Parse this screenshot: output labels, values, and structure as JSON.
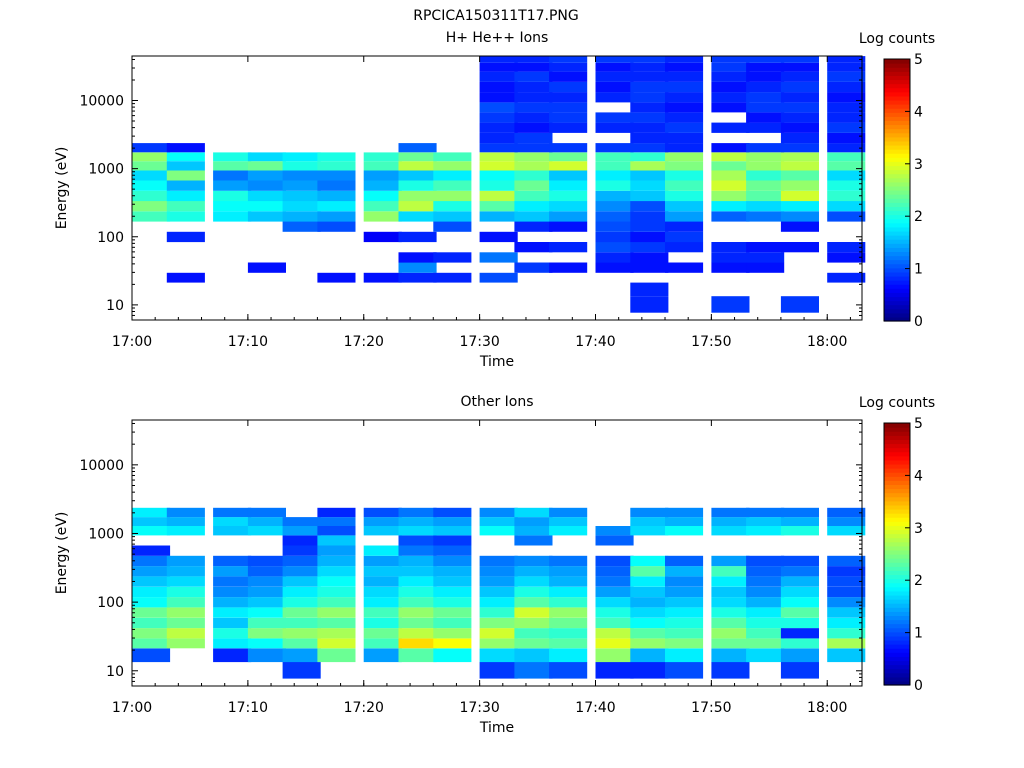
{
  "figure_title": "RPCICA150311T17.PNG",
  "colorbar": {
    "label": "Log counts",
    "ticks": [
      "0",
      "1",
      "2",
      "3",
      "4",
      "5"
    ],
    "range": [
      0,
      5
    ],
    "colormap": "jet"
  },
  "chart_data": [
    {
      "type": "heatmap",
      "title": "H+ He++ Ions",
      "xlabel": "Time",
      "ylabel": "Energy (eV)",
      "xticks": [
        "17:00",
        "17:10",
        "17:20",
        "17:30",
        "17:40",
        "17:50",
        "18:00"
      ],
      "yticks": [
        "10",
        "100",
        "1000",
        "10000"
      ],
      "y_scale": "log",
      "ylim": [
        6,
        45000
      ],
      "xlim": [
        "17:00",
        "18:03"
      ],
      "time_bins_start": [
        "17:00",
        "17:03",
        "17:07",
        "17:10",
        "17:13",
        "17:16",
        "17:20",
        "17:23",
        "17:26",
        "17:30",
        "17:33",
        "17:36",
        "17:40",
        "17:43",
        "17:46",
        "17:50",
        "17:53",
        "17:56",
        "18:00"
      ],
      "time_bin_minutes": 3.25,
      "energy_bins_eV": [
        10,
        18,
        25,
        35,
        50,
        70,
        100,
        140,
        200,
        280,
        400,
        560,
        800,
        1100,
        1500,
        2000,
        2800,
        4000,
        5600,
        8000,
        11000,
        16000,
        22000,
        32000,
        40000
      ],
      "z": [
        [
          0,
          0,
          0,
          0,
          0,
          0,
          0,
          0,
          2.2,
          2.5,
          2.1,
          1.9,
          1.7,
          2.4,
          2.6,
          0.9,
          0,
          0,
          0,
          0,
          0,
          0,
          0,
          0,
          0
        ],
        [
          0,
          0,
          0.7,
          0,
          0,
          0,
          0.8,
          0,
          2.0,
          2.2,
          1.8,
          1.5,
          2.5,
          1.6,
          1.9,
          0.7,
          0,
          0,
          0,
          0,
          0,
          0,
          0,
          0,
          0
        ],
        [
          0,
          0,
          0,
          0,
          0,
          0,
          0,
          0,
          1.8,
          1.9,
          2.0,
          1.4,
          1.2,
          2.3,
          2.0,
          0,
          0,
          0,
          0,
          0,
          0,
          0,
          0,
          0,
          0
        ],
        [
          0,
          0,
          0,
          0.7,
          0,
          0,
          0,
          0,
          1.6,
          1.9,
          1.7,
          1.3,
          1.4,
          2.4,
          1.7,
          0,
          0,
          0,
          0,
          0,
          0,
          0,
          0,
          0,
          0
        ],
        [
          0,
          0,
          0,
          0,
          0,
          0,
          0,
          1.1,
          1.5,
          1.7,
          1.6,
          1.4,
          1.3,
          2.0,
          1.8,
          0,
          0,
          0,
          0,
          0,
          0,
          0,
          0,
          0,
          0
        ],
        [
          0,
          0,
          0.7,
          0,
          0,
          0,
          0,
          1.0,
          1.4,
          1.8,
          1.5,
          1.2,
          1.3,
          2.1,
          2.0,
          0,
          0,
          0,
          0,
          0,
          0,
          0,
          0,
          0,
          0
        ],
        [
          0,
          0,
          0.7,
          0,
          0,
          0,
          0.6,
          0,
          2.6,
          2.2,
          1.9,
          1.5,
          1.4,
          2.2,
          2.1,
          0,
          0,
          0,
          0,
          0,
          0,
          0,
          0,
          0,
          0
        ],
        [
          0,
          0,
          0.8,
          1.3,
          0.7,
          0,
          0.8,
          0,
          1.7,
          2.8,
          2.6,
          2.0,
          1.6,
          2.8,
          2.4,
          1.1,
          0,
          0,
          0,
          0,
          0,
          0,
          0,
          0,
          0
        ],
        [
          0,
          0,
          0.8,
          0,
          0.8,
          0,
          0,
          1.0,
          1.6,
          2.0,
          2.6,
          2.2,
          1.8,
          2.6,
          2.2,
          0,
          0,
          0,
          0,
          0,
          0,
          0,
          0,
          0,
          0
        ],
        [
          0,
          0,
          1.0,
          0,
          1.2,
          0,
          0.7,
          0,
          1.5,
          2.3,
          2.8,
          2.0,
          1.9,
          2.9,
          2.8,
          0.9,
          0.8,
          0.8,
          0.9,
          1.0,
          0.7,
          0.7,
          0.8,
          0.7,
          0.8
        ],
        [
          0,
          0,
          0,
          0.9,
          0,
          0.7,
          0,
          0.8,
          1.6,
          1.8,
          2.2,
          2.4,
          2.1,
          2.7,
          2.6,
          0.9,
          0.9,
          0.7,
          0.8,
          0.9,
          0.8,
          0.8,
          0.9,
          0.7,
          0.8
        ],
        [
          0,
          0,
          0,
          0.7,
          0,
          0.8,
          0,
          0.7,
          1.4,
          1.7,
          2.0,
          1.8,
          1.6,
          2.9,
          2.4,
          0.9,
          0,
          0.8,
          0.9,
          0.9,
          0.8,
          0.9,
          0.7,
          0.8,
          0.9
        ],
        [
          0,
          0,
          0,
          0.7,
          0.8,
          1.0,
          0.9,
          1.0,
          1.1,
          1.3,
          1.5,
          2.0,
          1.8,
          2.2,
          2.2,
          0.9,
          0,
          0.8,
          0.9,
          0,
          0.8,
          0.7,
          0.8,
          0.7,
          0.9
        ],
        [
          0.8,
          0.8,
          0,
          0.7,
          0.7,
          0.9,
          0.7,
          0.9,
          0.9,
          1.0,
          1.6,
          1.7,
          1.6,
          2.7,
          2.1,
          0.9,
          0.8,
          0.8,
          0.9,
          0.8,
          0.9,
          0.9,
          0.8,
          0.8,
          0.9
        ],
        [
          0,
          0,
          0,
          0.7,
          0,
          0.8,
          0.9,
          0.8,
          1.4,
          1.6,
          2.0,
          2.2,
          2.0,
          2.5,
          2.6,
          0.8,
          0.8,
          0.9,
          0.8,
          0.7,
          0.8,
          0.9,
          0.8,
          0.7,
          0.8
        ],
        [
          0.9,
          0,
          0,
          0.7,
          0.8,
          0.8,
          0,
          0,
          1.1,
          1.8,
          2.6,
          2.9,
          2.7,
          2.4,
          2.8,
          0.7,
          0,
          0.8,
          0,
          0.7,
          0.8,
          0.7,
          0.8,
          0.9,
          0.9
        ],
        [
          0,
          0,
          0,
          0.7,
          0.8,
          0.7,
          0,
          0,
          1.2,
          1.7,
          2.3,
          2.4,
          2.1,
          2.6,
          2.6,
          0.9,
          0,
          0.8,
          0.7,
          0.9,
          0.9,
          0.8,
          0.7,
          0.7,
          0.9
        ],
        [
          0.9,
          0,
          0,
          0,
          0,
          0.7,
          0,
          0.7,
          1.3,
          1.8,
          2.9,
          2.6,
          2.3,
          2.8,
          2.7,
          0.9,
          0.8,
          0.7,
          0.8,
          0.9,
          0.8,
          0.9,
          0.8,
          0.7,
          0.9
        ],
        [
          0,
          0,
          0.8,
          0,
          0.7,
          0.8,
          0,
          0,
          1.0,
          1.7,
          2.1,
          2.0,
          1.7,
          2.3,
          2.2,
          0.8,
          0.7,
          0.9,
          0.8,
          0.8,
          0.7,
          0.8,
          0.9,
          0.8,
          0.8
        ]
      ]
    },
    {
      "type": "heatmap",
      "title": "Other Ions",
      "xlabel": "Time",
      "ylabel": "Energy (eV)",
      "xticks": [
        "17:00",
        "17:10",
        "17:20",
        "17:30",
        "17:40",
        "17:50",
        "18:00"
      ],
      "yticks": [
        "10",
        "100",
        "1000",
        "10000"
      ],
      "y_scale": "log",
      "ylim": [
        6,
        45000
      ],
      "xlim": [
        "17:00",
        "18:03"
      ],
      "time_bins_start": [
        "17:00",
        "17:03",
        "17:07",
        "17:10",
        "17:13",
        "17:16",
        "17:20",
        "17:23",
        "17:26",
        "17:30",
        "17:33",
        "17:36",
        "17:40",
        "17:43",
        "17:46",
        "17:50",
        "17:53",
        "17:56",
        "18:00"
      ],
      "time_bin_minutes": 3.25,
      "energy_bins_eV": [
        10,
        18,
        25,
        35,
        50,
        70,
        100,
        140,
        200,
        280,
        400,
        560,
        800,
        1100,
        1500,
        2000,
        2800,
        4000,
        5600,
        8000,
        11000,
        16000,
        22000,
        32000,
        40000
      ],
      "z": [
        [
          0,
          1.0,
          2.3,
          2.5,
          2.2,
          2.4,
          1.9,
          1.8,
          1.6,
          1.4,
          1.2,
          0.8,
          0,
          1.9,
          1.6,
          1.8,
          0,
          0,
          0,
          0,
          0,
          0,
          0,
          0,
          0
        ],
        [
          0,
          0,
          2.6,
          2.8,
          2.4,
          2.6,
          2.2,
          2.0,
          1.7,
          1.5,
          1.4,
          0,
          0,
          1.8,
          1.5,
          1.3,
          0,
          0,
          0,
          0,
          0,
          0,
          0,
          0,
          0
        ],
        [
          0,
          0.8,
          1.8,
          2.0,
          1.6,
          1.8,
          1.5,
          1.3,
          1.2,
          1.4,
          1.1,
          0,
          0,
          1.6,
          1.7,
          1.2,
          0,
          0,
          0,
          0,
          0,
          0,
          0,
          0,
          0
        ],
        [
          0,
          1.3,
          1.9,
          2.5,
          2.2,
          1.9,
          1.6,
          1.4,
          1.3,
          1.1,
          1.0,
          0,
          0,
          1.7,
          1.5,
          1.2,
          0,
          0,
          0,
          0,
          0,
          0,
          0,
          0,
          0
        ],
        [
          0.9,
          1.4,
          2.3,
          2.6,
          2.2,
          2.4,
          2.0,
          1.8,
          1.6,
          1.3,
          1.1,
          0.9,
          0.8,
          1.4,
          1.2,
          0,
          0,
          0,
          0,
          0,
          0,
          0,
          0,
          0,
          0
        ],
        [
          0,
          2.4,
          2.9,
          2.7,
          2.3,
          2.6,
          2.2,
          2.0,
          1.9,
          1.7,
          1.5,
          1.4,
          1.6,
          1.0,
          1.2,
          0.8,
          0,
          0,
          0,
          0,
          0,
          0,
          0,
          0,
          0
        ],
        [
          0,
          1.4,
          2.2,
          2.4,
          2.0,
          2.2,
          1.8,
          1.7,
          1.5,
          1.6,
          1.4,
          1.8,
          0,
          1.6,
          1.4,
          1.0,
          0,
          0,
          0,
          0,
          0,
          0,
          0,
          0,
          0
        ],
        [
          0,
          2.3,
          3.3,
          2.8,
          2.4,
          2.6,
          2.2,
          2.0,
          1.8,
          1.6,
          1.5,
          1.2,
          1.0,
          1.7,
          1.5,
          1.2,
          0,
          0,
          0,
          0,
          0,
          0,
          0,
          0,
          0
        ],
        [
          0,
          1.9,
          3.1,
          2.6,
          2.2,
          2.4,
          2.0,
          1.8,
          1.6,
          1.5,
          1.3,
          1.1,
          0.9,
          1.6,
          1.4,
          1.0,
          0,
          0,
          0,
          0,
          0,
          0,
          0,
          0,
          0
        ],
        [
          0.9,
          1.7,
          2.6,
          2.9,
          2.5,
          2.1,
          1.8,
          1.6,
          1.4,
          1.3,
          1.2,
          0,
          0,
          1.9,
          1.6,
          1.3,
          0,
          0,
          0,
          0,
          0,
          0,
          0,
          0,
          0
        ],
        [
          1.2,
          1.6,
          2.4,
          2.2,
          2.6,
          2.9,
          2.3,
          2.0,
          1.7,
          1.5,
          1.3,
          0,
          1.2,
          1.5,
          1.4,
          1.7,
          0,
          0,
          0,
          0,
          0,
          0,
          0,
          0,
          0
        ],
        [
          1.0,
          1.8,
          2.3,
          2.1,
          2.4,
          2.6,
          2.1,
          1.8,
          1.5,
          1.4,
          1.2,
          0,
          0,
          1.8,
          1.6,
          1.3,
          0,
          0,
          0,
          0,
          0,
          0,
          0,
          0,
          0
        ],
        [
          0.8,
          2.6,
          3.0,
          2.8,
          2.2,
          2.0,
          1.7,
          1.4,
          1.2,
          1.1,
          1.0,
          0,
          1.1,
          1.3,
          0,
          0,
          0,
          0,
          0,
          0,
          0,
          0,
          0,
          0,
          0
        ],
        [
          0.8,
          1.5,
          2.6,
          2.3,
          1.9,
          1.7,
          1.5,
          1.6,
          1.8,
          2.3,
          1.9,
          0,
          0,
          1.7,
          1.6,
          1.3,
          0,
          0,
          0,
          0,
          0,
          0,
          0,
          0,
          0
        ],
        [
          1.0,
          1.8,
          2.5,
          2.2,
          2.0,
          1.8,
          1.6,
          1.4,
          1.3,
          1.5,
          1.1,
          0,
          0,
          1.9,
          1.5,
          1.3,
          0,
          0,
          0,
          0,
          0,
          0,
          0,
          0,
          0
        ],
        [
          0.9,
          1.5,
          2.4,
          2.6,
          2.3,
          2.0,
          1.7,
          1.6,
          1.8,
          2.2,
          1.4,
          0,
          0,
          1.7,
          1.5,
          1.2,
          0,
          0,
          0,
          0,
          0,
          0,
          0,
          0,
          0
        ],
        [
          0,
          1.7,
          2.4,
          2.2,
          2.0,
          1.8,
          1.5,
          1.3,
          1.2,
          1.1,
          1.0,
          0,
          0,
          1.8,
          1.6,
          1.2,
          0,
          0,
          0,
          0,
          0,
          0,
          0,
          0,
          0
        ],
        [
          0.9,
          1.4,
          2.1,
          0.8,
          2.0,
          2.3,
          1.9,
          1.7,
          1.5,
          1.2,
          1.0,
          0,
          0,
          2.0,
          1.5,
          1.2,
          0,
          0,
          0,
          0,
          0,
          0,
          0,
          0,
          0
        ],
        [
          0,
          1.6,
          2.7,
          2.1,
          1.8,
          1.6,
          1.3,
          1.0,
          1.0,
          0.9,
          1.1,
          0,
          0,
          1.7,
          1.3,
          1.1,
          0,
          0,
          0,
          0,
          0,
          0,
          0,
          0,
          0
        ]
      ]
    }
  ]
}
